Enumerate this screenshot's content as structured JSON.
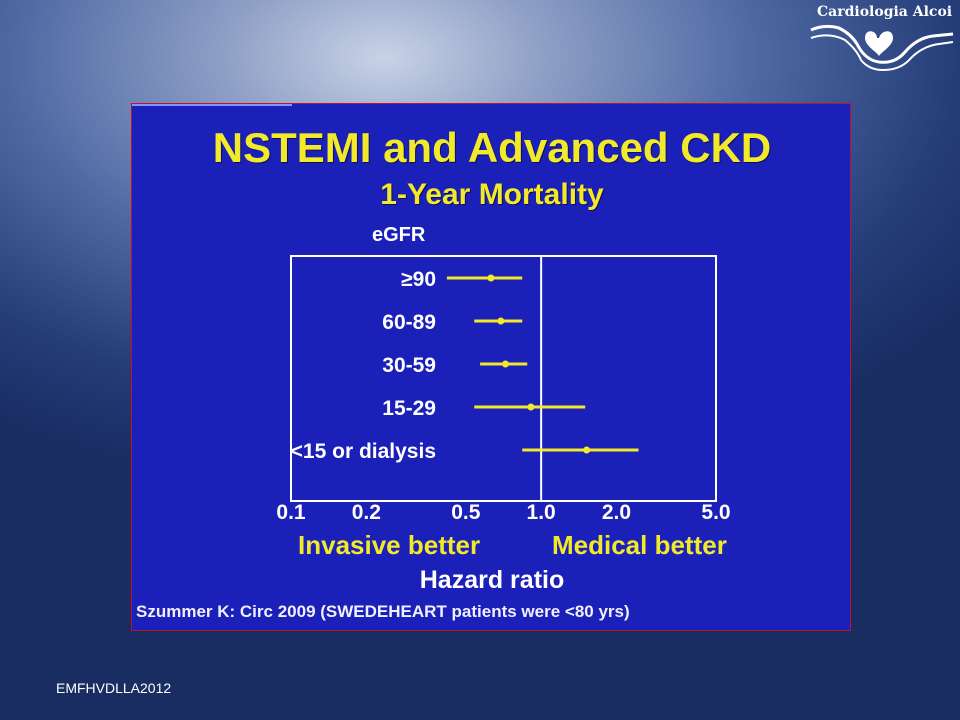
{
  "logo": {
    "text": "Cardiologia Alcoi",
    "icon": "heart-icon"
  },
  "footer": "EMFHVDLLA2012",
  "slide": {
    "colors": {
      "background": "#1a20b8",
      "title": "#f2e92a",
      "marks": "#f2e92a",
      "axis": "#ffffff"
    }
  },
  "chart_data": {
    "type": "scatter",
    "title": "NSTEMI and Advanced CKD",
    "subtitle": "1-Year Mortality",
    "row_header": "eGFR",
    "xlabel": "Hazard ratio",
    "x_scale": "log",
    "xlim": [
      0.1,
      5.0
    ],
    "x_ticks": [
      "0.1",
      "0.2",
      "0.5",
      "1.0",
      "2.0",
      "5.0"
    ],
    "reference_line": 1.0,
    "favors_left": "Invasive better",
    "favors_right": "Medical better",
    "series": [
      {
        "values": [
          {
            "label": "≥90",
            "hr": 0.63,
            "lo": 0.42,
            "hi": 0.84
          },
          {
            "label": "60-89",
            "hr": 0.69,
            "lo": 0.54,
            "hi": 0.84
          },
          {
            "label": "30-59",
            "hr": 0.72,
            "lo": 0.57,
            "hi": 0.88
          },
          {
            "label": "15-29",
            "hr": 0.91,
            "lo": 0.54,
            "hi": 1.5
          },
          {
            "label": "<15 or dialysis",
            "hr": 1.52,
            "lo": 0.84,
            "hi": 2.45
          }
        ]
      }
    ],
    "source": "Szummer K:  Circ 2009 (SWEDEHEART patients were <80 yrs)"
  }
}
